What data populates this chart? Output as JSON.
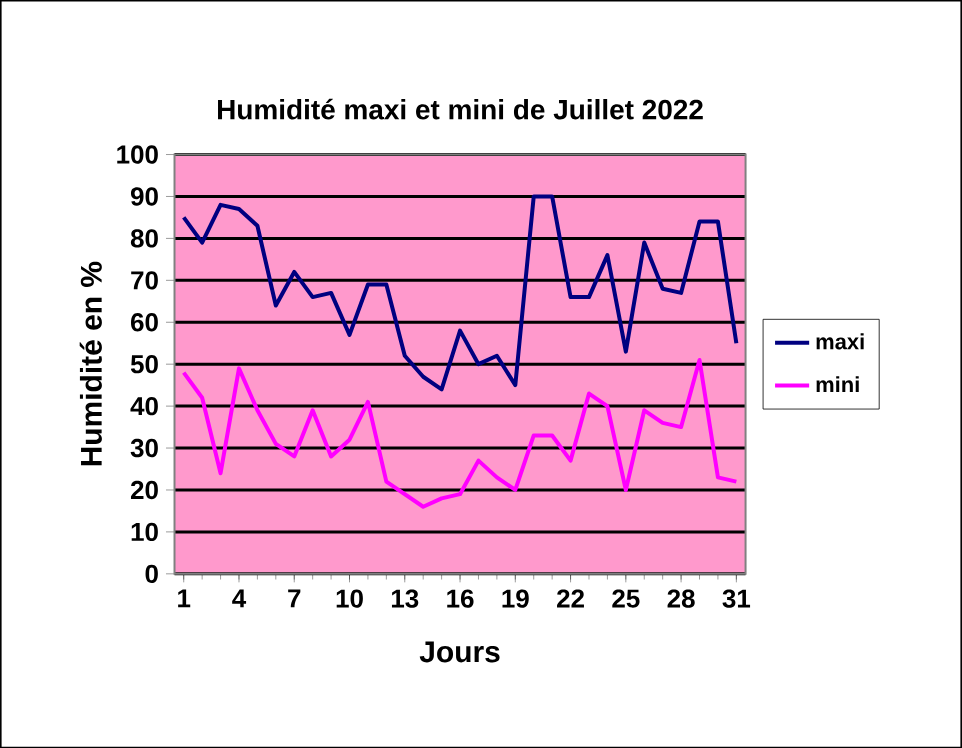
{
  "chart_data": {
    "type": "line",
    "title": "Humidité maxi et mini de Juillet 2022",
    "xlabel": "Jours",
    "ylabel": "Humidité en %",
    "categories": [
      "1",
      null,
      null,
      "4",
      null,
      null,
      "7",
      null,
      null,
      "10",
      null,
      null,
      "13",
      null,
      null,
      "16",
      null,
      null,
      "19",
      null,
      null,
      "22",
      null,
      null,
      "25",
      null,
      null,
      "28",
      null,
      null,
      "31"
    ],
    "series": [
      {
        "name": "maxi",
        "color": "#000080",
        "values": [
          85,
          79,
          88,
          87,
          83,
          64,
          72,
          66,
          67,
          57,
          69,
          69,
          52,
          47,
          44,
          58,
          50,
          52,
          45,
          90,
          90,
          66,
          66,
          76,
          53,
          79,
          68,
          67,
          84,
          84,
          55
        ]
      },
      {
        "name": "mini",
        "color": "#ff00ff",
        "values": [
          48,
          42,
          24,
          49,
          39,
          31,
          28,
          39,
          28,
          32,
          41,
          22,
          19,
          16,
          18,
          19,
          27,
          23,
          20,
          33,
          33,
          27,
          43,
          40,
          20,
          39,
          36,
          35,
          51,
          23,
          22
        ]
      }
    ],
    "ylim": [
      0,
      100
    ],
    "yticks": [
      0,
      10,
      20,
      30,
      40,
      50,
      60,
      70,
      80,
      90,
      100
    ],
    "grid": "y",
    "legend": "right",
    "marker": "none",
    "line_style": "solid"
  }
}
